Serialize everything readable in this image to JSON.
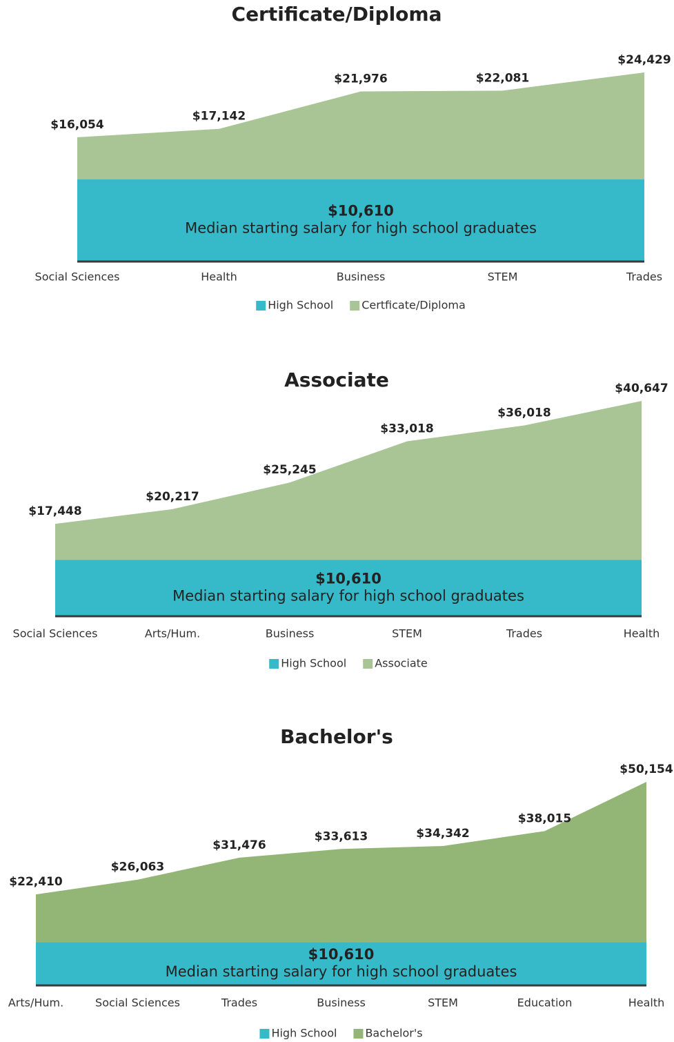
{
  "chart_data": [
    {
      "type": "area",
      "title": "Certificate/Diploma",
      "categories": [
        "Social Sciences",
        "Health",
        "Business",
        "STEM",
        "Trades"
      ],
      "series": [
        {
          "name": "High School",
          "color": "#36b9c8",
          "values": [
            10610,
            10610,
            10610,
            10610,
            10610
          ]
        },
        {
          "name": "Certficate/Diploma",
          "color": "#a9c595",
          "values": [
            16054,
            17142,
            21976,
            22081,
            24429
          ],
          "value_labels": [
            "$16,054",
            "$17,142",
            "$21,976",
            "$22,081",
            "$24,429"
          ]
        }
      ],
      "annotation": [
        "$10,610",
        "Median starting salary for high school graduates"
      ]
    },
    {
      "type": "area",
      "title": "Associate",
      "categories": [
        "Social Sciences",
        "Arts/Hum.",
        "Business",
        "STEM",
        "Trades",
        "Health"
      ],
      "series": [
        {
          "name": "High School",
          "color": "#36b9c8",
          "values": [
            10610,
            10610,
            10610,
            10610,
            10610,
            10610
          ]
        },
        {
          "name": "Associate",
          "color": "#a9c595",
          "values": [
            17448,
            20217,
            25245,
            33018,
            36018,
            40647
          ],
          "value_labels": [
            "$17,448",
            "$20,217",
            "$25,245",
            "$33,018",
            "$36,018",
            "$40,647"
          ]
        }
      ],
      "annotation": [
        "$10,610",
        "Median starting salary for high school graduates"
      ]
    },
    {
      "type": "area",
      "title": "Bachelor's",
      "categories": [
        "Arts/Hum.",
        "Social Sciences",
        "Trades",
        "Business",
        "STEM",
        "Education",
        "Health"
      ],
      "series": [
        {
          "name": "High School",
          "color": "#36b9c8",
          "values": [
            10610,
            10610,
            10610,
            10610,
            10610,
            10610,
            10610
          ]
        },
        {
          "name": "Bachelor's",
          "color": "#93b677",
          "values": [
            22410,
            26063,
            31476,
            33613,
            34342,
            38015,
            50154
          ],
          "value_labels": [
            "$22,410",
            "$26,063",
            "$31,476",
            "$33,613",
            "$34,342",
            "$38,015",
            "$50,154"
          ]
        }
      ],
      "annotation": [
        "$10,610",
        "Median starting salary for high school graduates"
      ]
    }
  ]
}
